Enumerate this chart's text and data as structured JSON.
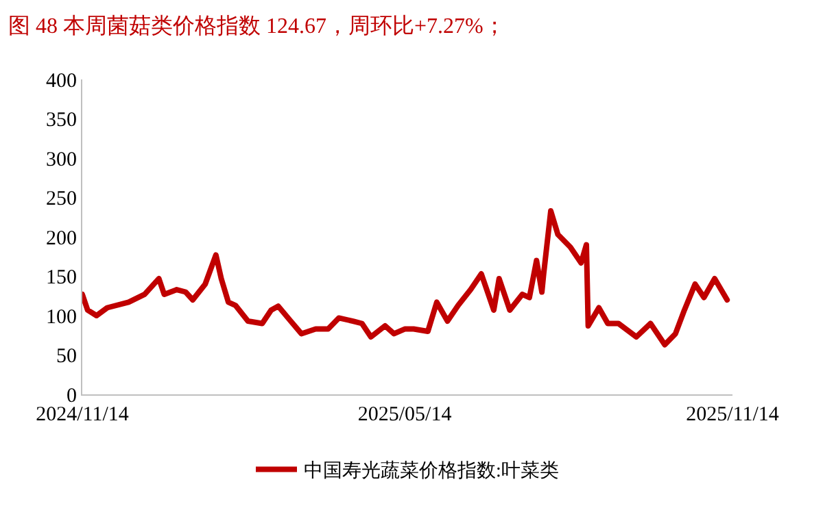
{
  "chart_data": {
    "type": "line",
    "title": "图 48 本周菌菇类价格指数 124.67，周环比+7.27%；",
    "x": [
      "2024-11-14",
      "2024-11-17",
      "2024-11-22",
      "2024-11-28",
      "2024-12-10",
      "2024-12-19",
      "2024-12-27",
      "2024-12-30",
      "2025-01-06",
      "2025-01-11",
      "2025-01-15",
      "2025-01-22",
      "2025-01-28",
      "2025-01-31",
      "2025-02-04",
      "2025-02-08",
      "2025-02-15",
      "2025-02-23",
      "2025-02-28",
      "2025-03-04",
      "2025-03-11",
      "2025-03-17",
      "2025-03-25",
      "2025-04-01",
      "2025-04-07",
      "2025-04-15",
      "2025-04-20",
      "2025-04-25",
      "2025-05-03",
      "2025-05-08",
      "2025-05-14",
      "2025-05-19",
      "2025-05-27",
      "2025-06-01",
      "2025-06-07",
      "2025-06-13",
      "2025-06-20",
      "2025-06-26",
      "2025-07-03",
      "2025-07-06",
      "2025-07-12",
      "2025-07-19",
      "2025-07-23",
      "2025-07-27",
      "2025-07-30",
      "2025-07-31",
      "2025-08-04",
      "2025-08-08",
      "2025-08-15",
      "2025-08-21",
      "2025-08-24",
      "2025-08-25",
      "2025-08-31",
      "2025-09-05",
      "2025-09-11",
      "2025-09-21",
      "2025-09-29",
      "2025-10-07",
      "2025-10-13",
      "2025-10-18",
      "2025-10-24",
      "2025-10-29",
      "2025-11-04",
      "2025-11-11"
    ],
    "series": [
      {
        "name": "中国寿光蔬菜价格指数:叶菜类",
        "color": "#c00000",
        "values": [
          127,
          107,
          100,
          110,
          117,
          127,
          147,
          127,
          133,
          130,
          120,
          140,
          177,
          147,
          117,
          113,
          93,
          90,
          107,
          112,
          93,
          77,
          83,
          83,
          97,
          93,
          90,
          73,
          87,
          77,
          83,
          83,
          80,
          117,
          93,
          113,
          133,
          153,
          107,
          147,
          107,
          127,
          123,
          170,
          130,
          153,
          233,
          203,
          187,
          167,
          190,
          87,
          110,
          90,
          90,
          73,
          90,
          63,
          77,
          107,
          140,
          123,
          147,
          120
        ]
      }
    ],
    "xlim": [
      "2024-11-14",
      "2025-11-14"
    ],
    "xticks": [
      {
        "value": "2024-11-14",
        "label": "2024/11/14"
      },
      {
        "value": "2025-05-14",
        "label": "2025/05/14"
      },
      {
        "value": "2025-11-14",
        "label": "2025/11/14"
      }
    ],
    "ylim": [
      0,
      400
    ],
    "yticks": [
      0,
      50,
      100,
      150,
      200,
      250,
      300,
      350,
      400
    ],
    "legend": "bottom",
    "marker": "none",
    "line_style": "solid"
  }
}
